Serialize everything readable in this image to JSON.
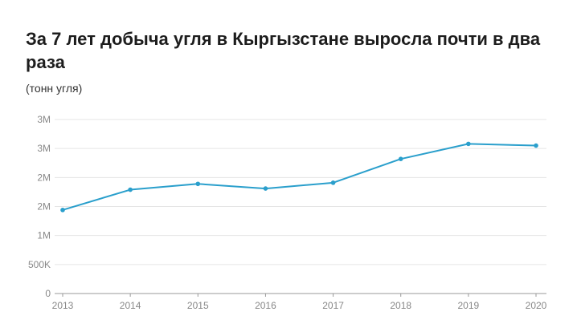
{
  "header": {
    "title": "За 7 лет добыча угля в Кыргызстане выросла почти в два раза",
    "subtitle": "(тонн угля)"
  },
  "colors": {
    "line": "#2a9fcc",
    "grid": "#e5e5e5",
    "axis": "#999999",
    "tick_text": "#888888"
  },
  "chart_data": {
    "type": "line",
    "x": [
      "2013",
      "2014",
      "2015",
      "2016",
      "2017",
      "2018",
      "2019",
      "2020"
    ],
    "y": [
      1440000,
      1790000,
      1890000,
      1810000,
      1910000,
      2320000,
      2580000,
      2550000
    ],
    "ylim": [
      0,
      3000000
    ],
    "yticks": [
      0,
      500000,
      1000000,
      1500000,
      2000000,
      2500000,
      3000000
    ],
    "ytick_labels": [
      "0",
      "500K",
      "1M",
      "2M",
      "2M",
      "3M",
      "3M"
    ],
    "grid": true,
    "legend": "none"
  }
}
